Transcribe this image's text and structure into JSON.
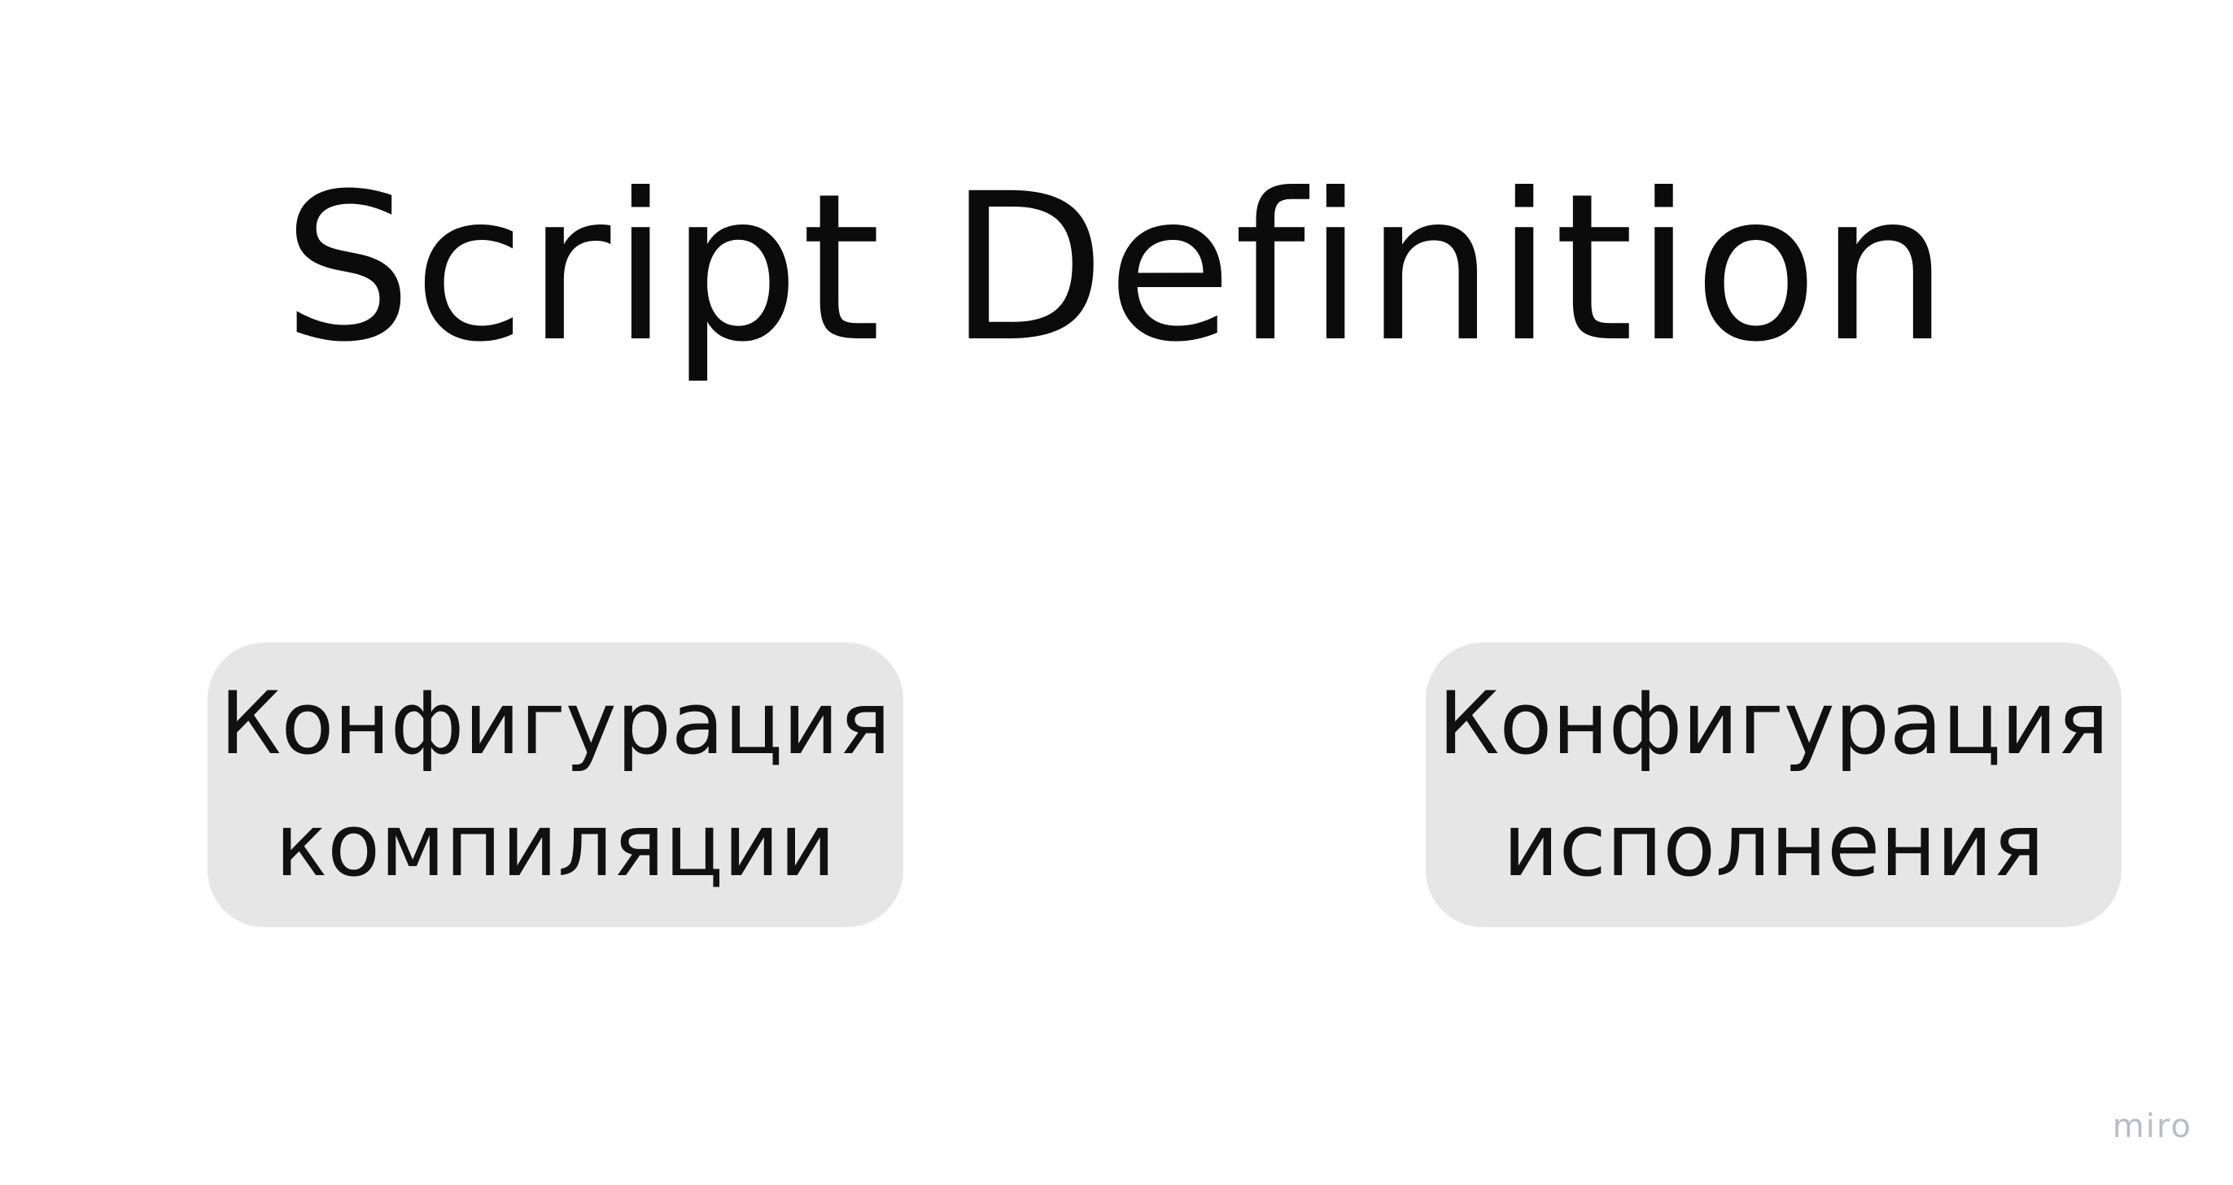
{
  "title": "Script Definition",
  "boxes": [
    {
      "line1": "Конфигурация",
      "line2": "компиляции"
    },
    {
      "line1": "Конфигурация",
      "line2": "исполнения"
    }
  ],
  "watermark": "miro",
  "colors": {
    "background": "#ffffff",
    "box_fill": "#e6e6e6",
    "text": "#111111",
    "watermark": "#b9bcc6"
  }
}
